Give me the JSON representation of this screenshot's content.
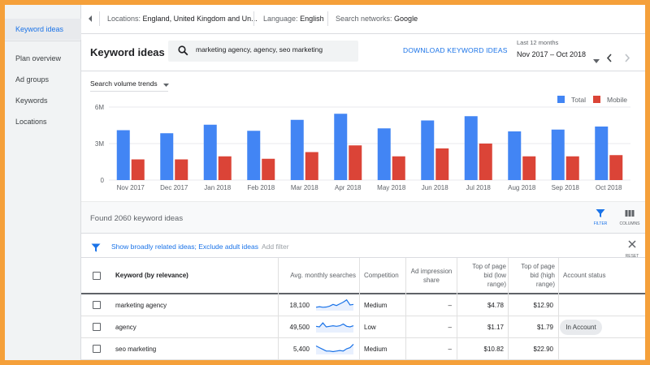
{
  "sidebar": {
    "items": [
      {
        "label": "Keyword ideas",
        "active": true
      },
      {
        "label": "Plan overview"
      },
      {
        "label": "Ad groups"
      },
      {
        "label": "Keywords"
      },
      {
        "label": "Locations"
      }
    ]
  },
  "topbar": {
    "locations_label": "Locations:",
    "locations_value": "England, United Kingdom and Un...",
    "language_label": "Language:",
    "language_value": "English",
    "networks_label": "Search networks:",
    "networks_value": "Google"
  },
  "header": {
    "title": "Keyword ideas",
    "search_value": "marketing agency, agency, seo marketing",
    "download_label": "DOWNLOAD KEYWORD IDEAS",
    "date_label": "Last 12 months",
    "date_value": "Nov 2017 – Oct 2018"
  },
  "colors": {
    "total": "#4285f4",
    "mobile": "#db4437",
    "accent": "#1a73e8"
  },
  "chart_data": {
    "type": "bar",
    "title": "",
    "dropdown_label": "Search volume trends",
    "categories": [
      "Nov 2017",
      "Dec 2017",
      "Jan 2018",
      "Feb 2018",
      "Mar 2018",
      "Apr 2018",
      "May 2018",
      "Jun 2018",
      "Jul 2018",
      "Aug 2018",
      "Sep 2018",
      "Oct 2018"
    ],
    "series": [
      {
        "name": "Total",
        "color": "#4285f4",
        "values": [
          4100000,
          3850000,
          4550000,
          4050000,
          4950000,
          5450000,
          4250000,
          4900000,
          5250000,
          4000000,
          4150000,
          4400000
        ]
      },
      {
        "name": "Mobile",
        "color": "#db4437",
        "values": [
          1700000,
          1700000,
          1950000,
          1750000,
          2300000,
          2850000,
          1950000,
          2600000,
          3000000,
          1950000,
          1950000,
          2050000
        ]
      }
    ],
    "yticks": [
      {
        "value": 0,
        "label": "0"
      },
      {
        "value": 3000000,
        "label": "3M"
      },
      {
        "value": 6000000,
        "label": "6M"
      }
    ],
    "ylim": [
      0,
      6000000
    ],
    "grid": true,
    "legend_position": "top-right"
  },
  "results": {
    "found_text": "Found 2060 keyword ideas",
    "filter_label": "FILTER",
    "columns_label": "COLUMNS",
    "filter_text": "Show broadly related ideas; Exclude adult ideas",
    "add_filter": "Add filter",
    "reset_label": "RESET"
  },
  "table": {
    "headers": {
      "keyword": "Keyword (by relevance)",
      "searches": "Avg. monthly searches",
      "competition": "Competition",
      "impression_line1": "Ad impression",
      "impression_line2": "share",
      "low_line1": "Top of page",
      "low_line2": "bid (low",
      "low_line3": "range)",
      "high_line1": "Top of page",
      "high_line2": "bid (high",
      "high_line3": "range)",
      "status": "Account status"
    },
    "rows": [
      {
        "keyword": "marketing agency",
        "searches": "18,100",
        "trend": [
          0.3,
          0.35,
          0.3,
          0.32,
          0.4,
          0.55,
          0.45,
          0.6,
          0.75,
          0.95,
          0.5,
          0.55
        ],
        "competition": "Medium",
        "impression": "–",
        "bid_low": "$4.78",
        "bid_high": "$12.90",
        "status": ""
      },
      {
        "keyword": "agency",
        "searches": "49,500",
        "trend": [
          0.55,
          0.5,
          0.85,
          0.5,
          0.55,
          0.6,
          0.55,
          0.6,
          0.75,
          0.55,
          0.5,
          0.6
        ],
        "competition": "Low",
        "impression": "–",
        "bid_low": "$1.17",
        "bid_high": "$1.79",
        "status": "In Account"
      },
      {
        "keyword": "seo marketing",
        "searches": "5,400",
        "trend": [
          0.75,
          0.6,
          0.45,
          0.3,
          0.3,
          0.25,
          0.3,
          0.35,
          0.3,
          0.5,
          0.6,
          0.9
        ],
        "competition": "Medium",
        "impression": "–",
        "bid_low": "$10.82",
        "bid_high": "$22.90",
        "status": ""
      }
    ]
  }
}
